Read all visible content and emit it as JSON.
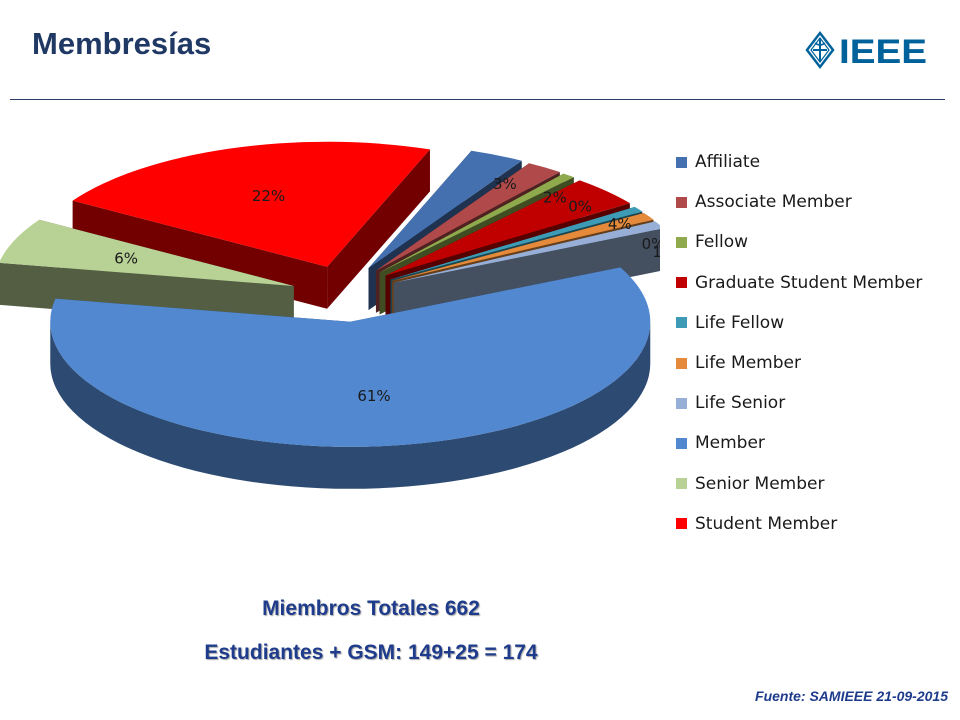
{
  "title": "Membresías",
  "logo": {
    "text": "IEEE",
    "color": "#00629b"
  },
  "chart_data": {
    "type": "pie",
    "style": "3d-exploded",
    "title": "",
    "legend_position": "right",
    "categories": [
      "Affiliate",
      "Associate Member",
      "Fellow",
      "Graduate Student Member",
      "Life Fellow",
      "Life Member",
      "Life Senior",
      "Member",
      "Senior Member",
      "Student Member"
    ],
    "values": [
      3,
      2,
      0,
      4,
      0,
      1,
      1,
      61,
      6,
      22
    ],
    "labels": [
      "3%",
      "2%",
      "0%",
      "4%",
      "0%",
      "1%",
      "1%",
      "61%",
      "6%",
      "22%"
    ],
    "colors": [
      "#4470b0",
      "#b04a4a",
      "#8faa4c",
      "#c00000",
      "#3d9bb5",
      "#e48a3a",
      "#97afd6",
      "#5188d0",
      "#b8d195",
      "#ff0000"
    ]
  },
  "totals": {
    "line1": "Miembros Totales 662",
    "line2": "Estudiantes + GSM: 149+25 = 174"
  },
  "source": "Fuente: SAMIEEE 21-09-2015"
}
